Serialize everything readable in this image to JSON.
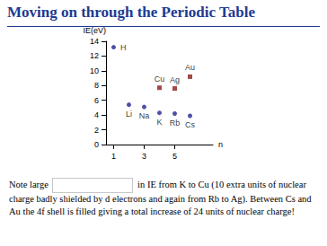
{
  "chart_data": {
    "type": "scatter",
    "title": "Moving on through the Periodic Table",
    "x_label": "n",
    "y_label": "IE(eV)",
    "xlim": [
      0.5,
      7.5
    ],
    "xticks": [
      1,
      3,
      5
    ],
    "ylim": [
      0,
      14
    ],
    "yticks": [
      0,
      2,
      4,
      6,
      8,
      10,
      12,
      14
    ],
    "grid": false,
    "series": [
      {
        "color": "#23238e",
        "marker": "circle",
        "x": [
          1,
          2,
          3,
          4,
          5,
          6
        ],
        "values": [
          13.2,
          5.4,
          5.1,
          4.3,
          4.2,
          3.9
        ],
        "labels": [
          "H",
          "Li",
          "Na",
          "K",
          "Rb",
          "Cs"
        ]
      },
      {
        "color": "#8b1c1c",
        "marker": "square",
        "x": [
          4,
          5,
          6
        ],
        "values": [
          7.7,
          7.6,
          9.2
        ],
        "labels": [
          "Cu",
          "Ag",
          "Au"
        ]
      }
    ],
    "annotations": [
      "Note large",
      "in IE from K to Cu (10 extra units of nuclear charge badly shielded by d electrons and again from Rb to Ag). Between Cs and Au the 4f shell is filled giving a total increase of 24 units of nuclear charge!"
    ]
  }
}
